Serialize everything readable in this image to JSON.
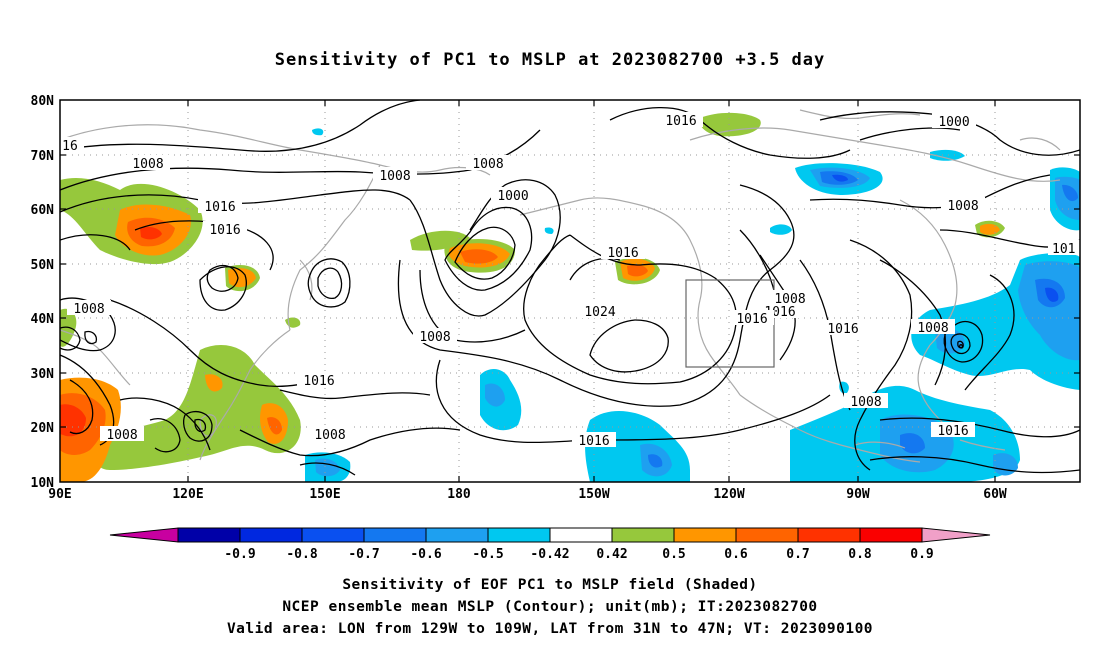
{
  "title": "Sensitivity of PC1 to MSLP at 2023082700 +3.5 day",
  "map": {
    "lon_ticks": [
      "90E",
      "120E",
      "150E",
      "180",
      "150W",
      "120W",
      "90W",
      "60W"
    ],
    "lat_ticks": [
      "80N",
      "70N",
      "60N",
      "50N",
      "40N",
      "30N",
      "20N",
      "10N"
    ],
    "lon_range": [
      "90E",
      "45W"
    ],
    "lat_range": [
      "10N",
      "80N"
    ],
    "grid": "dotted",
    "target_box": "LON 129W to 109W, LAT 31N to 47N",
    "contour_labels": [
      "1008",
      "1016",
      "1000",
      "1024",
      "1016",
      "1008",
      "1016",
      "1000",
      "1008",
      "1016",
      "1008",
      "1016",
      "1008",
      "1008",
      "1016",
      "1016",
      "1008",
      "1016",
      "1008",
      "101"
    ]
  },
  "colorbar": {
    "labels": [
      "-0.9",
      "-0.8",
      "-0.7",
      "-0.6",
      "-0.5",
      "-0.42",
      "0.42",
      "0.5",
      "0.6",
      "0.7",
      "0.8",
      "0.9"
    ],
    "colors": [
      "#0000a8",
      "#0028e0",
      "#0a50f0",
      "#1478f0",
      "#1ea0f0",
      "#00c8f0",
      "#ffffff",
      "#96c83c",
      "#ff9600",
      "#ff6400",
      "#ff3200",
      "#fa0000"
    ],
    "end_low": "#c800a0",
    "end_high": "#f0a0c8"
  },
  "caption": {
    "line1": "Sensitivity of EOF PC1 to MSLP field (Shaded)",
    "line2": "NCEP ensemble mean MSLP (Contour); unit(mb); IT:2023082700",
    "line3": "Valid area: LON from 129W to 109W, LAT from 31N to 47N; VT: 2023090100"
  },
  "colors": {
    "coast": "#aaaaaa",
    "contour": "#000000",
    "grid": "#999999"
  }
}
